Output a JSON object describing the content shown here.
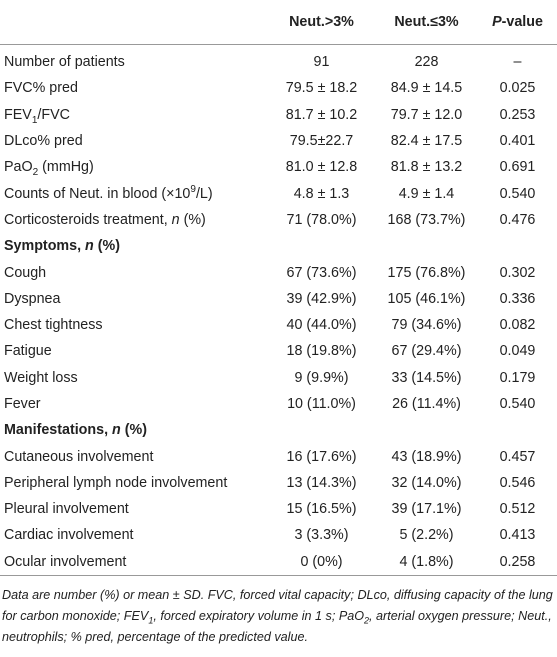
{
  "table": {
    "header": [
      "Neut.>3%",
      "Neut.≤3%",
      [
        "P",
        "-value"
      ]
    ],
    "rows": [
      {
        "label": "Number of patients",
        "values": [
          "91",
          "228",
          "–"
        ]
      },
      {
        "label": "FVC% pred",
        "values": [
          "79.5 ± 18.2",
          "84.9 ± 14.5",
          "0.025"
        ]
      },
      {
        "label": [
          "FEV",
          "1",
          "/FVC"
        ],
        "values": [
          "81.7 ± 10.2",
          "79.7 ± 12.0",
          "0.253"
        ]
      },
      {
        "label": "DLco% pred",
        "values": [
          "79.5±22.7",
          "82.4 ± 17.5",
          "0.401"
        ]
      },
      {
        "label": [
          "PaO",
          "2",
          " (mmHg)"
        ],
        "values": [
          "81.0 ± 12.8",
          "81.8 ± 13.2",
          "0.691"
        ]
      },
      {
        "label": [
          "Counts of Neut. in blood (×10",
          "9",
          "/L)"
        ],
        "values": [
          "4.8 ± 1.3",
          "4.9 ± 1.4",
          "0.540"
        ]
      },
      {
        "label": [
          "Corticosteroids treatment, ",
          "n",
          " (%)"
        ],
        "values": [
          "71 (78.0%)",
          "168 (73.7%)",
          "0.476"
        ]
      },
      {
        "label": [
          "Symptoms, ",
          "n",
          " (%)"
        ]
      },
      {
        "label": "Cough",
        "values": [
          "67 (73.6%)",
          "175 (76.8%)",
          "0.302"
        ]
      },
      {
        "label": "Dyspnea",
        "values": [
          "39 (42.9%)",
          "105 (46.1%)",
          "0.336"
        ]
      },
      {
        "label": "Chest tightness",
        "values": [
          "40 (44.0%)",
          "79 (34.6%)",
          "0.082"
        ]
      },
      {
        "label": "Fatigue",
        "values": [
          "18 (19.8%)",
          "67 (29.4%)",
          "0.049"
        ]
      },
      {
        "label": "Weight loss",
        "values": [
          "9 (9.9%)",
          "33 (14.5%)",
          "0.179"
        ]
      },
      {
        "label": "Fever",
        "values": [
          "10 (11.0%)",
          "26 (11.4%)",
          "0.540"
        ]
      },
      {
        "label": [
          "Manifestations, ",
          "n",
          " (%)"
        ]
      },
      {
        "label": "Cutaneous involvement",
        "values": [
          "16 (17.6%)",
          "43 (18.9%)",
          "0.457"
        ]
      },
      {
        "label": "Peripheral lymph node involvement",
        "values": [
          "13 (14.3%)",
          "32 (14.0%)",
          "0.546"
        ]
      },
      {
        "label": "Pleural involvement",
        "values": [
          "15 (16.5%)",
          "39 (17.1%)",
          "0.512"
        ]
      },
      {
        "label": "Cardiac involvement",
        "values": [
          "3 (3.3%)",
          "5 (2.2%)",
          "0.413"
        ]
      },
      {
        "label": "Ocular involvement",
        "values": [
          "0 (0%)",
          "4 (1.8%)",
          "0.258"
        ]
      }
    ],
    "footnote": [
      "Data are number (%) or mean ± SD. FVC, forced vital capacity; DLco, diffusing capacity of the lung for carbon monoxide; FEV",
      "1",
      ", forced expiratory volume in 1 s; PaO",
      "2",
      ", arterial oxygen pressure; Neut., neutrophils; % pred, percentage of the predicted value."
    ]
  }
}
